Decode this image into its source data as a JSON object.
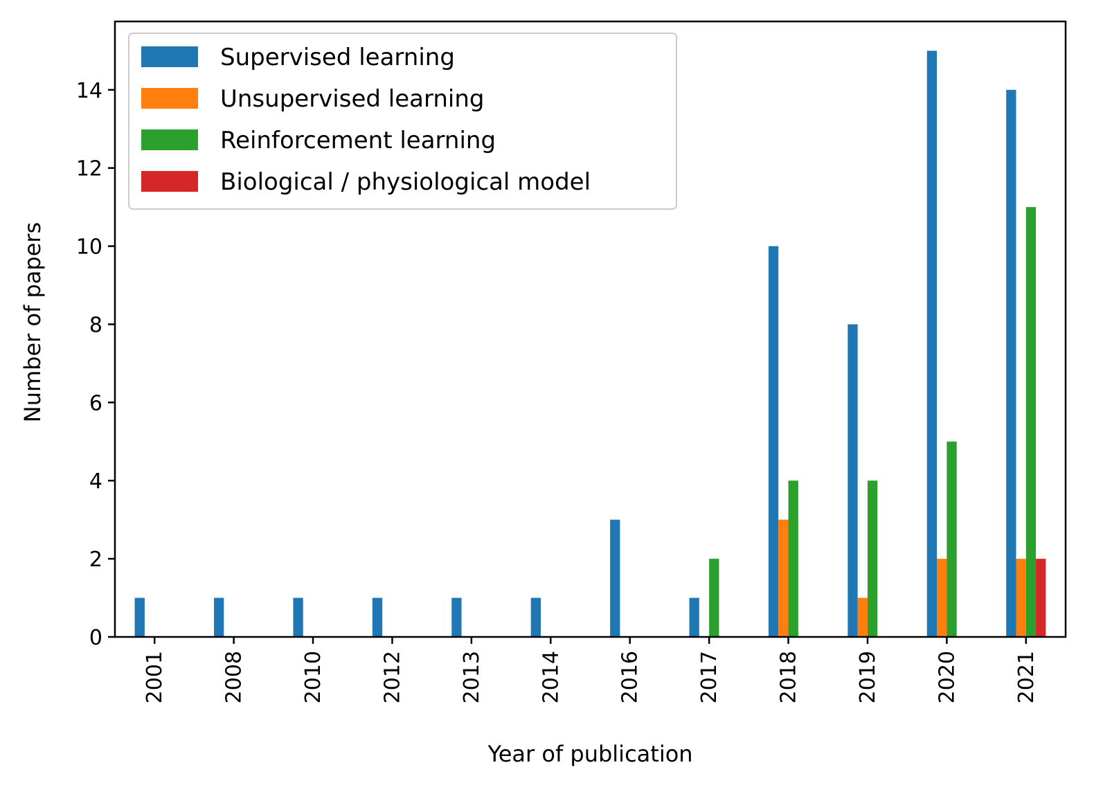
{
  "chart_data": {
    "type": "bar",
    "xlabel": "Year of publication",
    "ylabel": "Number of papers",
    "categories": [
      "2001",
      "2008",
      "2010",
      "2012",
      "2013",
      "2014",
      "2016",
      "2017",
      "2018",
      "2019",
      "2020",
      "2021"
    ],
    "series": [
      {
        "name": "Supervised learning",
        "color": "#1f77b4",
        "values": [
          1,
          1,
          1,
          1,
          1,
          1,
          3,
          1,
          10,
          8,
          15,
          14
        ]
      },
      {
        "name": "Unsupervised learning",
        "color": "#ff7f0e",
        "values": [
          0,
          0,
          0,
          0,
          0,
          0,
          0,
          0,
          3,
          1,
          2,
          2
        ]
      },
      {
        "name": "Reinforcement learning",
        "color": "#2ca02c",
        "values": [
          0,
          0,
          0,
          0,
          0,
          0,
          0,
          2,
          4,
          4,
          5,
          11
        ]
      },
      {
        "name": "Biological / physiological model",
        "color": "#d62728",
        "values": [
          0,
          0,
          0,
          0,
          0,
          0,
          0,
          0,
          0,
          0,
          0,
          2
        ]
      }
    ],
    "ylim": [
      0,
      15.75
    ],
    "yticks": [
      0,
      2,
      4,
      6,
      8,
      10,
      12,
      14
    ],
    "grid": false,
    "legend_position": "top-left"
  }
}
